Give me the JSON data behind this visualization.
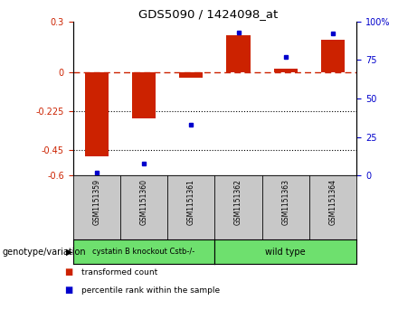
{
  "title": "GDS5090 / 1424098_at",
  "samples": [
    "GSM1151359",
    "GSM1151360",
    "GSM1151361",
    "GSM1151362",
    "GSM1151363",
    "GSM1151364"
  ],
  "transformed_count": [
    -0.49,
    -0.265,
    -0.03,
    0.22,
    0.025,
    0.19
  ],
  "percentile_rank": [
    2,
    8,
    33,
    93,
    77,
    92
  ],
  "ylim_left": [
    -0.6,
    0.3
  ],
  "ylim_right": [
    0,
    100
  ],
  "yticks_left": [
    0.3,
    0,
    -0.225,
    -0.45,
    -0.6
  ],
  "yticks_right": [
    100,
    75,
    50,
    25,
    0
  ],
  "hlines": [
    -0.225,
    -0.45
  ],
  "group1_label": "cystatin B knockout Cstb-/-",
  "group2_label": "wild type",
  "group_color": "#6EE06E",
  "sample_box_color": "#C8C8C8",
  "group_label_text": "genotype/variation",
  "bar_color": "#CC2200",
  "dot_color": "#0000CC",
  "zero_line_color": "#CC2200",
  "legend_items": [
    {
      "label": "transformed count",
      "color": "#CC2200"
    },
    {
      "label": "percentile rank within the sample",
      "color": "#0000CC"
    }
  ]
}
